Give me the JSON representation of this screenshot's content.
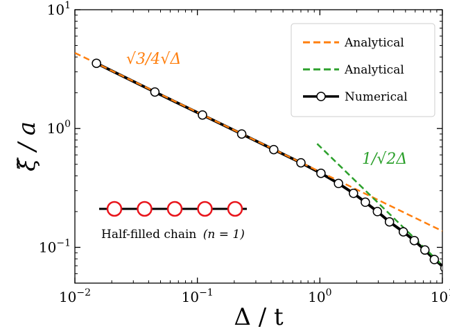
{
  "chart_data": {
    "type": "line",
    "xscale": "log",
    "yscale": "log",
    "xlim": [
      0.01,
      10
    ],
    "ylim": [
      0.05,
      10
    ],
    "xlabel": "Δ / t",
    "ylabel": "ξ̃ / a",
    "x_ticks": [
      {
        "value": 0.01,
        "mant": "10",
        "exp": "−2"
      },
      {
        "value": 0.1,
        "mant": "10",
        "exp": "−1"
      },
      {
        "value": 1,
        "mant": "10",
        "exp": "0"
      },
      {
        "value": 10,
        "mant": "10",
        "exp": "1"
      }
    ],
    "y_ticks": [
      {
        "value": 0.1,
        "mant": "10",
        "exp": "−1"
      },
      {
        "value": 1,
        "mant": "10",
        "exp": "0"
      },
      {
        "value": 10,
        "mant": "10",
        "exp": "1"
      }
    ],
    "series": [
      {
        "name": "Analytical",
        "style": "dashed",
        "color": "#ff7f0e",
        "x": [
          0.01,
          0.1,
          1,
          10
        ],
        "y": [
          4.33,
          1.37,
          0.433,
          0.137
        ]
      },
      {
        "name": "Analytical",
        "style": "dashed",
        "color": "#2ca02c",
        "x": [
          0.95,
          10
        ],
        "y": [
          0.744,
          0.0707
        ]
      },
      {
        "name": "Numerical",
        "style": "solid-markers",
        "color": "#000000",
        "x": [
          0.015,
          0.045,
          0.11,
          0.23,
          0.42,
          0.7,
          1.02,
          1.42,
          1.88,
          2.35,
          2.95,
          3.7,
          4.8,
          5.9,
          7.2,
          8.6,
          10.5
        ],
        "y": [
          3.54,
          2.03,
          1.3,
          0.9,
          0.665,
          0.515,
          0.42,
          0.345,
          0.285,
          0.24,
          0.2,
          0.164,
          0.135,
          0.114,
          0.095,
          0.079,
          0.067
        ]
      }
    ],
    "legend": {
      "position": "upper right",
      "entries": [
        "Analytical",
        "Analytical",
        "Numerical"
      ]
    },
    "annotations": {
      "orange": "√3/4√Δ",
      "green": "1/√2Δ"
    },
    "inset": {
      "label": "Half-filled chain",
      "label_math": "(n = 1)",
      "sites": 5,
      "site_color": "#e8141b"
    },
    "grid": false
  }
}
